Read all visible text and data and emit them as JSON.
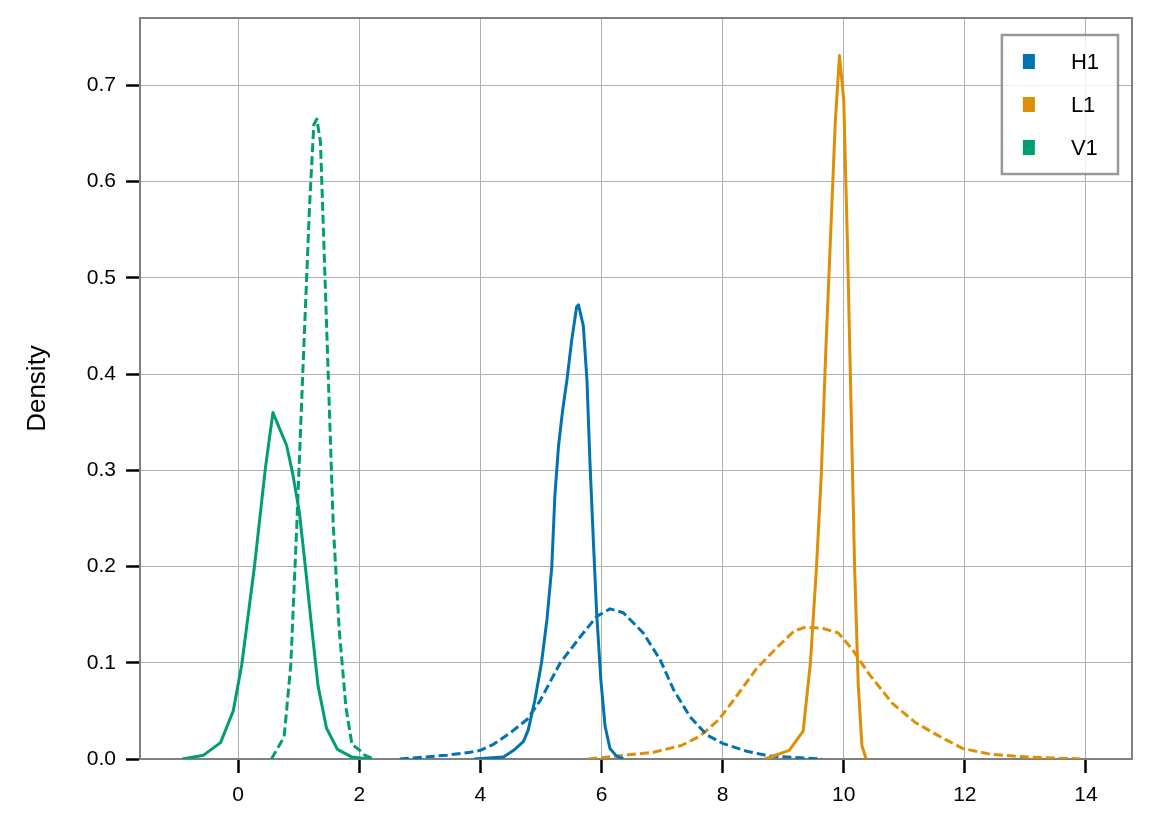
{
  "chart_data": {
    "type": "line",
    "ylabel": "Density",
    "xlim": [
      -1.62,
      14.76
    ],
    "ylim": [
      0,
      0.77
    ],
    "xticks": [
      0,
      2,
      4,
      6,
      8,
      10,
      12,
      14
    ],
    "yticks": [
      {
        "value": 0,
        "label": "0.0"
      },
      0.1,
      0.2,
      0.3,
      0.4,
      0.5,
      0.6,
      0.7
    ],
    "grid": true,
    "legend": "top right",
    "marker": "none",
    "series": [
      {
        "name": "H1",
        "color": "#0173b2",
        "line_style": "solid",
        "x": [
          3.9,
          4.38,
          4.55,
          4.71,
          4.79,
          4.9,
          5.01,
          5.1,
          5.18,
          5.23,
          5.29,
          5.36,
          5.43,
          5.51,
          5.59,
          5.62,
          5.7,
          5.76,
          5.81,
          5.87,
          5.92,
          5.99,
          6.06,
          6.14,
          6.25,
          6.36
        ],
        "values": [
          0,
          0.002,
          0.009,
          0.018,
          0.03,
          0.061,
          0.1,
          0.145,
          0.2,
          0.273,
          0.325,
          0.363,
          0.394,
          0.436,
          0.47,
          0.472,
          0.45,
          0.394,
          0.308,
          0.221,
          0.152,
          0.082,
          0.034,
          0.011,
          0.003,
          0
        ]
      },
      {
        "name": "L1",
        "color": "#de8f05",
        "line_style": "solid",
        "x": [
          8.7,
          9.1,
          9.33,
          9.45,
          9.55,
          9.63,
          9.7,
          9.78,
          9.86,
          9.93,
          10.0,
          10.06,
          10.12,
          10.18,
          10.24,
          10.3,
          10.37
        ],
        "values": [
          0,
          0.009,
          0.029,
          0.1,
          0.199,
          0.296,
          0.418,
          0.539,
          0.661,
          0.731,
          0.685,
          0.539,
          0.369,
          0.199,
          0.077,
          0.014,
          0
        ]
      },
      {
        "name": "V1",
        "color": "#029e73",
        "line_style": "solid",
        "x": [
          -0.92,
          -0.57,
          -0.29,
          -0.08,
          0.06,
          0.27,
          0.45,
          0.575,
          0.8,
          0.9,
          1.01,
          1.11,
          1.22,
          1.32,
          1.46,
          1.64,
          1.88,
          2.16
        ],
        "values": [
          0,
          0.004,
          0.017,
          0.05,
          0.098,
          0.2,
          0.302,
          0.36,
          0.326,
          0.297,
          0.257,
          0.2,
          0.134,
          0.076,
          0.032,
          0.01,
          0.002,
          0
        ]
      },
      {
        "color": "#0173b2",
        "line_style": "dashed",
        "x": [
          2.67,
          3.45,
          3.83,
          4.0,
          4.21,
          4.49,
          4.77,
          4.99,
          5.32,
          5.65,
          5.92,
          6.14,
          6.36,
          6.69,
          6.97,
          7.19,
          7.46,
          7.74,
          8.01,
          8.4,
          8.78,
          9.64
        ],
        "values": [
          0,
          0.004,
          0.007,
          0.009,
          0.015,
          0.027,
          0.041,
          0.061,
          0.1,
          0.127,
          0.148,
          0.156,
          0.152,
          0.131,
          0.103,
          0.072,
          0.044,
          0.025,
          0.016,
          0.008,
          0.003,
          0
        ]
      },
      {
        "color": "#de8f05",
        "line_style": "dashed",
        "x": [
          5.78,
          6.86,
          7.32,
          7.63,
          7.94,
          8.25,
          8.56,
          8.87,
          9.18,
          9.37,
          9.64,
          9.91,
          10.14,
          10.41,
          10.8,
          11.18,
          11.57,
          11.96,
          12.42,
          13.04,
          13.96
        ],
        "values": [
          0,
          0.007,
          0.014,
          0.024,
          0.041,
          0.067,
          0.094,
          0.114,
          0.133,
          0.137,
          0.136,
          0.131,
          0.114,
          0.089,
          0.058,
          0.038,
          0.024,
          0.011,
          0.005,
          0.002,
          0
        ]
      },
      {
        "color": "#029e73",
        "line_style": "dashed",
        "x": [
          0.55,
          0.76,
          0.87,
          0.97,
          1.08,
          1.18,
          1.25,
          1.3,
          1.36,
          1.43,
          1.5,
          1.57,
          1.67,
          1.78,
          1.88,
          1.99,
          2.09,
          2.24
        ],
        "values": [
          0,
          0.023,
          0.098,
          0.244,
          0.42,
          0.575,
          0.659,
          0.665,
          0.641,
          0.509,
          0.377,
          0.244,
          0.134,
          0.054,
          0.015,
          0.01,
          0.004,
          0
        ]
      }
    ]
  }
}
